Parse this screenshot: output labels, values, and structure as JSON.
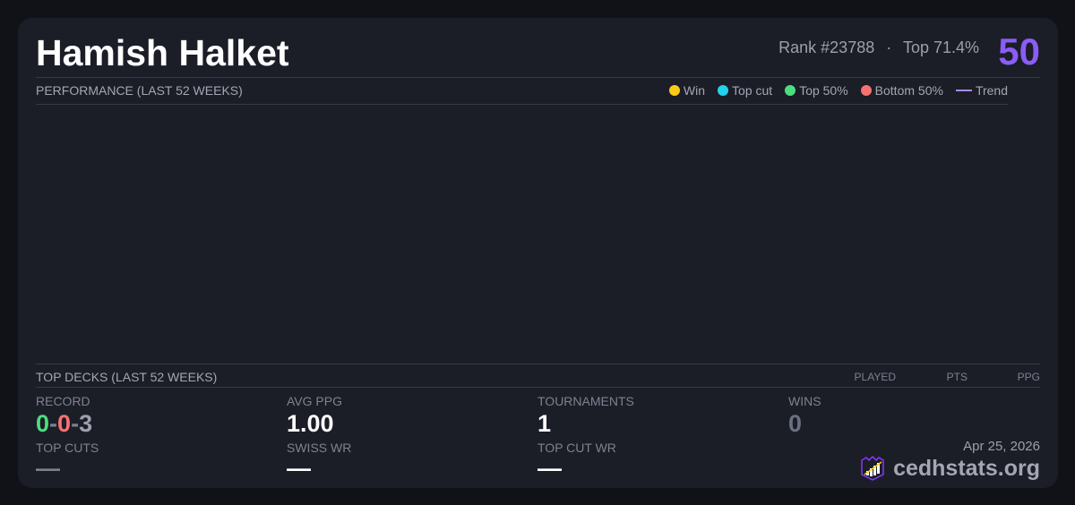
{
  "player": {
    "name": "Hamish Halket",
    "rank": "Rank #23788",
    "separator": "·",
    "percentile": "Top 71.4%",
    "score": "50"
  },
  "performance": {
    "title": "PERFORMANCE (LAST 52 WEEKS)",
    "legend": [
      {
        "label": "Win",
        "color": "#facc15",
        "kind": "dot"
      },
      {
        "label": "Top cut",
        "color": "#22d3ee",
        "kind": "dot"
      },
      {
        "label": "Top 50%",
        "color": "#4ade80",
        "kind": "dot"
      },
      {
        "label": "Bottom 50%",
        "color": "#f87171",
        "kind": "dot"
      },
      {
        "label": "Trend",
        "color": "#a78bfa",
        "kind": "line"
      }
    ]
  },
  "top_decks": {
    "title": "TOP DECKS (LAST 52 WEEKS)",
    "columns": [
      "PLAYED",
      "PTS",
      "PPG"
    ]
  },
  "stats": {
    "record": {
      "label": "RECORD",
      "wins": "0",
      "sep1": "-",
      "losses": "0",
      "sep2": "-",
      "draws": "3"
    },
    "avg_ppg": {
      "label": "AVG PPG",
      "value": "1.00"
    },
    "tournaments": {
      "label": "TOURNAMENTS",
      "value": "1"
    },
    "wins": {
      "label": "WINS",
      "value": "0"
    },
    "top_cuts": {
      "label": "TOP CUTS",
      "value": "—"
    },
    "swiss_wr": {
      "label": "SWISS WR",
      "value": "—"
    },
    "top_cut_wr": {
      "label": "TOP CUT WR",
      "value": "—"
    }
  },
  "footer": {
    "date": "Apr 25, 2026",
    "brand": "cedhstats.org"
  }
}
